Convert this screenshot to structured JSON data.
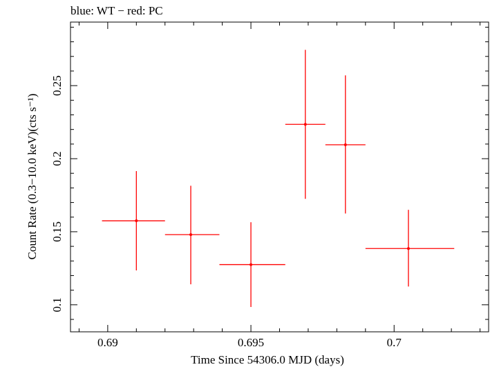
{
  "chart_data": {
    "type": "scatter",
    "title": "blue: WT − red: PC",
    "xlabel": "Time Since 54306.0 MJD (days)",
    "ylabel": "Count Rate (0.3−10.0 keV)(cts s⁻¹)",
    "xlim": [
      0.6887,
      0.7033
    ],
    "ylim": [
      0.0815,
      0.2935
    ],
    "x_ticks": [
      0.69,
      0.695,
      0.7
    ],
    "x_tick_labels": [
      "0.69",
      "0.695",
      "0.7"
    ],
    "y_ticks": [
      0.1,
      0.15,
      0.2,
      0.25
    ],
    "y_tick_labels": [
      "0.1",
      "0.15",
      "0.2",
      "0.25"
    ],
    "grid": false,
    "series": [
      {
        "color": "#ff0000",
        "points": [
          {
            "x": 0.691,
            "y": 0.1575,
            "x_lo": 0.6898,
            "x_hi": 0.692,
            "y_lo": 0.1235,
            "y_hi": 0.1915
          },
          {
            "x": 0.6929,
            "y": 0.148,
            "x_lo": 0.692,
            "x_hi": 0.6939,
            "y_lo": 0.114,
            "y_hi": 0.1815
          },
          {
            "x": 0.695,
            "y": 0.1275,
            "x_lo": 0.6939,
            "x_hi": 0.6962,
            "y_lo": 0.0985,
            "y_hi": 0.1565
          },
          {
            "x": 0.6969,
            "y": 0.2235,
            "x_lo": 0.6962,
            "x_hi": 0.6976,
            "y_lo": 0.1725,
            "y_hi": 0.2745
          },
          {
            "x": 0.6983,
            "y": 0.2095,
            "x_lo": 0.6976,
            "x_hi": 0.699,
            "y_lo": 0.1625,
            "y_hi": 0.257
          },
          {
            "x": 0.7005,
            "y": 0.1385,
            "x_lo": 0.699,
            "x_hi": 0.7021,
            "y_lo": 0.1125,
            "y_hi": 0.165
          }
        ]
      }
    ]
  }
}
